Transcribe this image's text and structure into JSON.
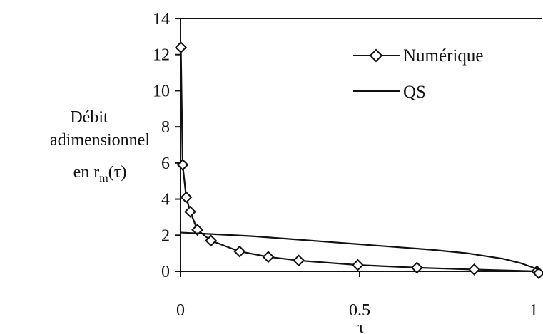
{
  "chart_data": {
    "type": "line",
    "ylabel_lines": [
      "Débit",
      "adimensionnel",
      "en r"
    ],
    "ylabel_sub": "m",
    "ylabel_tail": "(τ)",
    "xlabel": "τ",
    "xlim": [
      0,
      1
    ],
    "ylim": [
      0,
      14
    ],
    "xticks": [
      "0",
      "0.5",
      "1"
    ],
    "xtick_values": [
      0,
      0.5,
      1
    ],
    "yticks": [
      "0",
      "2",
      "4",
      "6",
      "8",
      "10",
      "12",
      "14"
    ],
    "ytick_values": [
      0,
      2,
      4,
      6,
      8,
      10,
      12,
      14
    ],
    "grid": false,
    "legend_position": "top-right",
    "series": [
      {
        "name": "Numérique",
        "marker": "diamond",
        "color": "#111111",
        "x": [
          0.001,
          0.006,
          0.016,
          0.027,
          0.047,
          0.085,
          0.165,
          0.245,
          0.33,
          0.495,
          0.66,
          0.82,
          0.995,
          1.0
        ],
        "y": [
          12.4,
          5.9,
          4.1,
          3.3,
          2.3,
          1.7,
          1.1,
          0.8,
          0.6,
          0.35,
          0.2,
          0.1,
          0.0,
          -0.1
        ]
      },
      {
        "name": "QS",
        "marker": "none",
        "color": "#111111",
        "x": [
          0.0,
          0.1,
          0.2,
          0.3,
          0.4,
          0.5,
          0.6,
          0.7,
          0.8,
          0.9,
          0.95,
          1.0
        ],
        "y": [
          2.15,
          2.05,
          1.95,
          1.8,
          1.65,
          1.5,
          1.35,
          1.2,
          1.0,
          0.7,
          0.45,
          0.1
        ]
      }
    ]
  }
}
